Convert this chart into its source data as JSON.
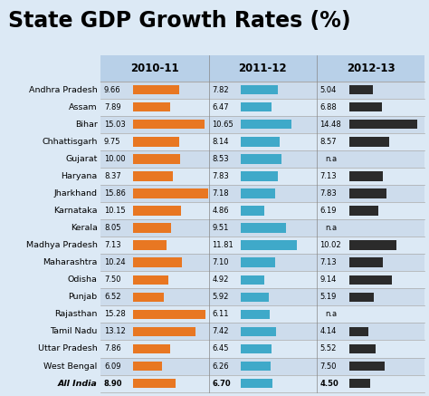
{
  "title": "State GDP Growth Rates (%)",
  "title_fontsize": 17,
  "title_fontweight": "bold",
  "background_color": "#dce9f5",
  "header_color": "#b8d0e8",
  "row_alt_color": "#cddcec",
  "states": [
    "Andhra Pradesh",
    "Assam",
    "Bihar",
    "Chhattisgarh",
    "Gujarat",
    "Haryana",
    "Jharkhand",
    "Karnataka",
    "Kerala",
    "Madhya Pradesh",
    "Maharashtra",
    "Odisha",
    "Punjab",
    "Rajasthan",
    "Tamil Nadu",
    "Uttar Pradesh",
    "West Bengal",
    "All India"
  ],
  "years": [
    "2010-11",
    "2011-12",
    "2012-13"
  ],
  "values": [
    [
      9.66,
      7.82,
      5.04
    ],
    [
      7.89,
      6.47,
      6.88
    ],
    [
      15.03,
      10.65,
      14.48
    ],
    [
      9.75,
      8.14,
      8.57
    ],
    [
      10.0,
      8.53,
      null
    ],
    [
      8.37,
      7.83,
      7.13
    ],
    [
      15.86,
      7.18,
      7.83
    ],
    [
      10.15,
      4.86,
      6.19
    ],
    [
      8.05,
      9.51,
      null
    ],
    [
      7.13,
      11.81,
      10.02
    ],
    [
      10.24,
      7.1,
      7.13
    ],
    [
      7.5,
      4.92,
      9.14
    ],
    [
      6.52,
      5.92,
      5.19
    ],
    [
      15.28,
      6.11,
      null
    ],
    [
      13.12,
      7.42,
      4.14
    ],
    [
      7.86,
      6.45,
      5.52
    ],
    [
      6.09,
      6.26,
      7.5
    ],
    [
      8.9,
      6.7,
      4.5
    ]
  ],
  "bar_colors": [
    "#e87722",
    "#3fa9c9",
    "#2b2b2b"
  ],
  "scale_max": 16.0,
  "na_label": "n.a",
  "value_fontsize": 6.0,
  "label_fontsize": 6.8,
  "header_fontsize": 8.5,
  "separator_color": "#aaaaaa",
  "vseparator_color": "#888888"
}
